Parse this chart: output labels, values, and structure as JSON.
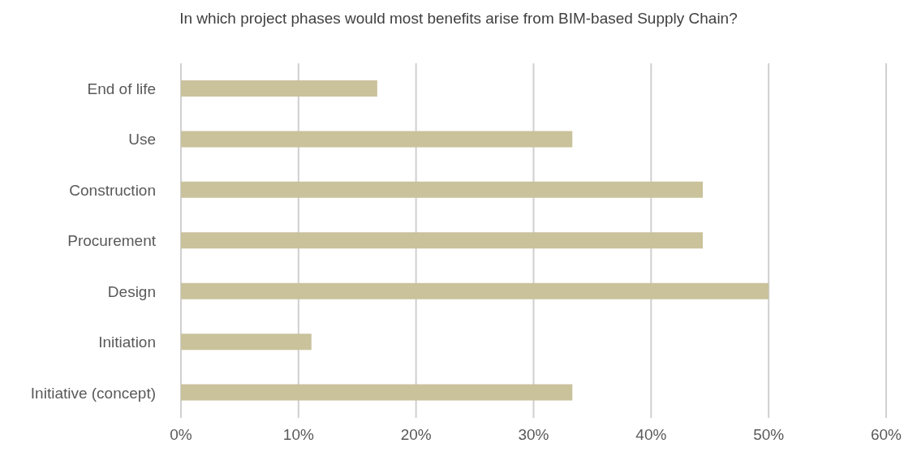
{
  "chart_data": {
    "type": "bar",
    "orientation": "horizontal",
    "title": "In which project phases would most benefits arise from BIM-based Supply Chain?",
    "categories": [
      "End of life",
      "Use",
      "Construction",
      "Procurement",
      "Design",
      "Initiation",
      "Initiative (concept)"
    ],
    "values": [
      16.7,
      33.3,
      44.4,
      44.4,
      50,
      11.1,
      33.3
    ],
    "color": "#c9c29b",
    "xlim": [
      0,
      60
    ],
    "xticks": [
      {
        "value": 0,
        "label": "0%"
      },
      {
        "value": 10,
        "label": "10%"
      },
      {
        "value": 20,
        "label": "20%"
      },
      {
        "value": 30,
        "label": "30%"
      },
      {
        "value": 40,
        "label": "40%"
      },
      {
        "value": 50,
        "label": "50%"
      },
      {
        "value": 60,
        "label": "60%"
      }
    ],
    "grid": "x"
  }
}
